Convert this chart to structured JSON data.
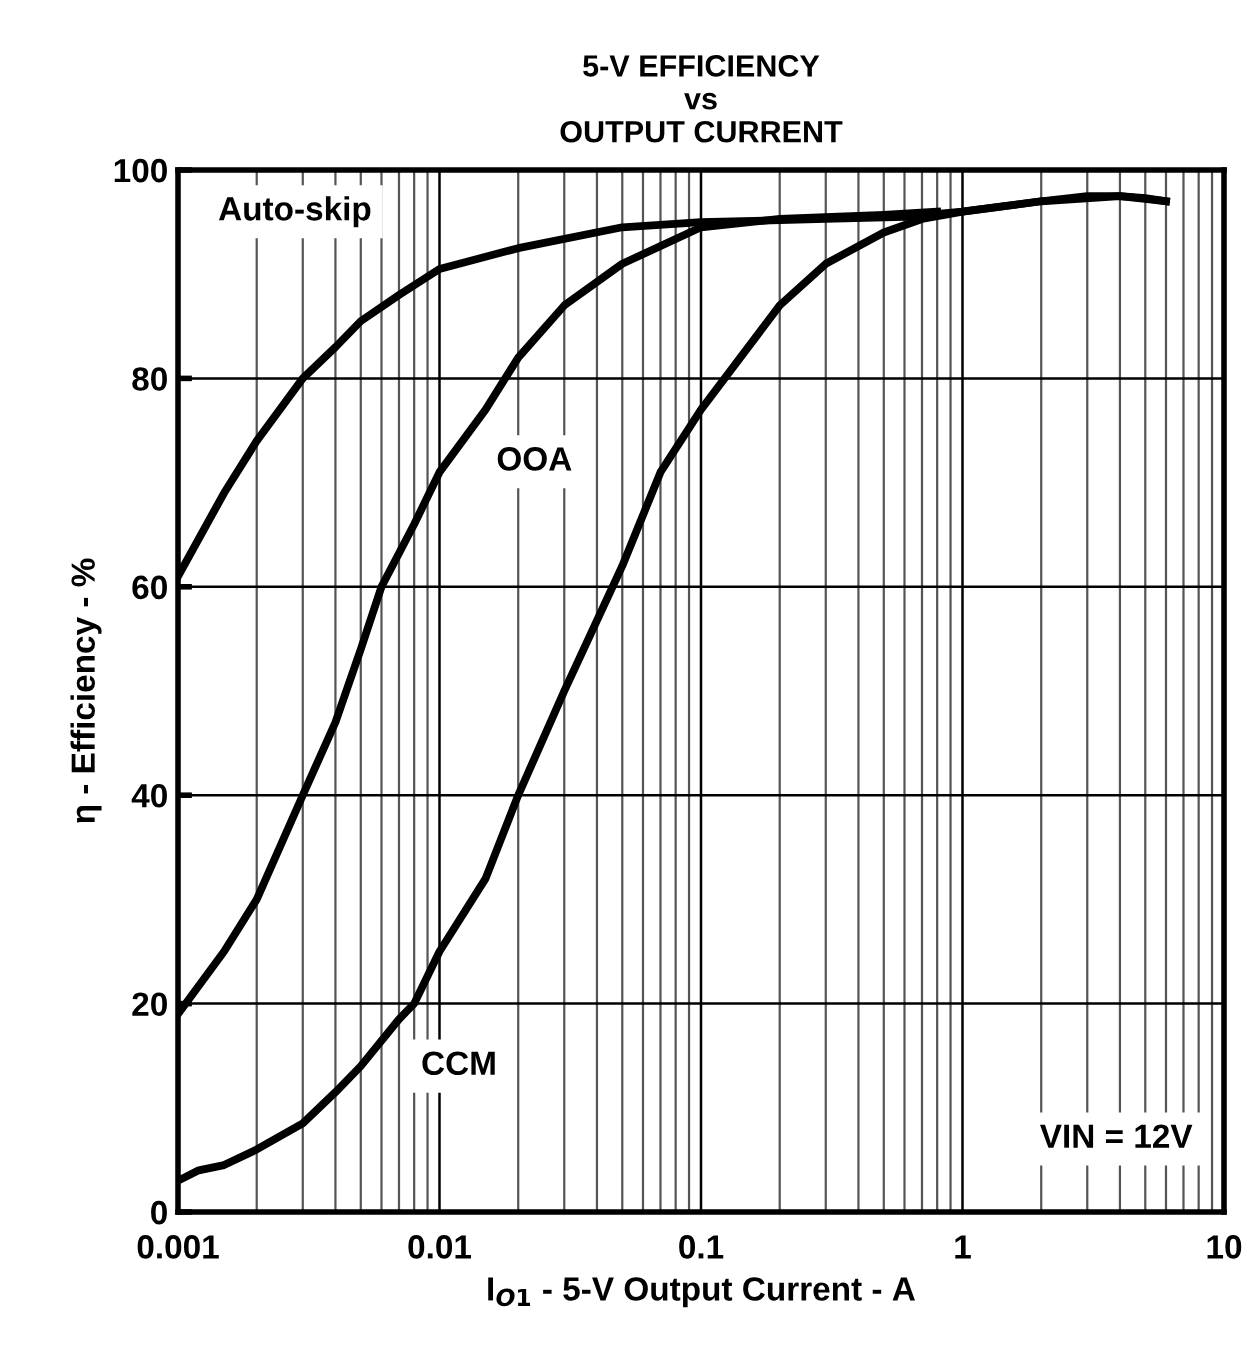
{
  "chart_data": {
    "type": "line",
    "title": "5-V EFFICIENCY\nvs\nOUTPUT CURRENT",
    "xlabel": "I$_{O1}$ - 5-V Output Current - A",
    "ylabel": "η - Efficiency - %",
    "log": "x",
    "xlim": [
      0.001,
      10
    ],
    "xticks": [
      0.001,
      0.01,
      0.1,
      1,
      10
    ],
    "ylim": [
      0,
      100
    ],
    "yticks": [
      0,
      20,
      40,
      60,
      80,
      100
    ],
    "grid": true,
    "legend": false,
    "marker": "none",
    "line_style": "solid",
    "annotations": [
      "VIN = 12V"
    ],
    "series": [
      {
        "name": "Auto-skip",
        "color": "#000000",
        "x": [
          0.001,
          0.0015,
          0.002,
          0.003,
          0.004,
          0.005,
          0.007,
          0.01,
          0.02,
          0.05,
          0.1,
          0.3,
          0.6,
          1,
          2,
          3,
          4,
          5,
          6
        ],
        "values": [
          61,
          69,
          74,
          80,
          83,
          85.5,
          88,
          90.5,
          92.5,
          94.5,
          95,
          95.3,
          95.5,
          96,
          97,
          97.5,
          97.5,
          97.3,
          97
        ]
      },
      {
        "name": "OOA",
        "color": "#000000",
        "x": [
          0.001,
          0.0015,
          0.002,
          0.003,
          0.004,
          0.005,
          0.006,
          0.008,
          0.01,
          0.015,
          0.02,
          0.03,
          0.05,
          0.1,
          0.2,
          0.5,
          0.8
        ],
        "values": [
          19,
          25,
          30,
          40,
          47,
          54,
          60,
          66,
          71,
          77,
          82,
          87,
          91,
          94.5,
          95.3,
          95.7,
          96
        ]
      },
      {
        "name": "CCM",
        "color": "#000000",
        "x": [
          0.001,
          0.0012,
          0.0015,
          0.002,
          0.003,
          0.004,
          0.005,
          0.007,
          0.008,
          0.01,
          0.015,
          0.02,
          0.03,
          0.05,
          0.07,
          0.1,
          0.2,
          0.3,
          0.5,
          0.7,
          1,
          2,
          4,
          6
        ],
        "values": [
          3,
          4,
          4.5,
          6,
          8.5,
          11.5,
          14,
          18.5,
          20,
          25,
          32,
          40,
          50,
          62,
          71,
          77,
          87,
          91,
          94,
          95.3,
          96,
          97,
          97.5,
          97
        ]
      }
    ]
  }
}
